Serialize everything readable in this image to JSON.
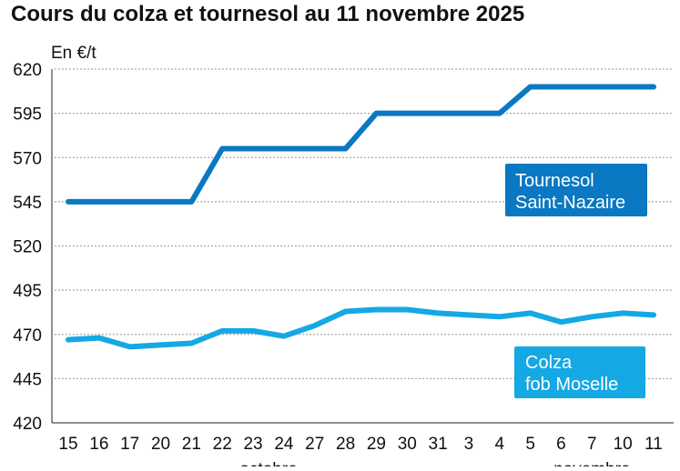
{
  "chart_data": {
    "type": "line",
    "title": "Cours du colza et tournesol au 11 novembre 2025",
    "ylabel": "En €/t",
    "xlabel": "",
    "ylim": [
      420,
      620
    ],
    "yticks": [
      620,
      595,
      570,
      545,
      520,
      495,
      470,
      445,
      420
    ],
    "grid": true,
    "categories": [
      "15",
      "16",
      "17",
      "20",
      "21",
      "22",
      "23",
      "24",
      "27",
      "28",
      "29",
      "30",
      "31",
      "3",
      "4",
      "5",
      "6",
      "7",
      "10",
      "11"
    ],
    "month_labels": [
      {
        "label": "octobre",
        "center_category_index": 6.5
      },
      {
        "label": "novembre",
        "center_category_index": 17
      }
    ],
    "series": [
      {
        "name": "Tournesol Saint-Nazaire",
        "label_lines": [
          "Tournesol",
          "Saint-Nazaire"
        ],
        "color": "#0a78c2",
        "values": [
          545,
          545,
          545,
          545,
          545,
          575,
          575,
          575,
          575,
          575,
          595,
          595,
          595,
          595,
          595,
          610,
          610,
          610,
          610,
          610
        ]
      },
      {
        "name": "Colza fob Moselle",
        "label_lines": [
          "Colza",
          "fob Moselle"
        ],
        "color": "#14a8e4",
        "values": [
          467,
          468,
          463,
          464,
          465,
          472,
          472,
          469,
          475,
          483,
          484,
          484,
          482,
          481,
          480,
          482,
          477,
          480,
          482,
          481
        ]
      }
    ]
  }
}
